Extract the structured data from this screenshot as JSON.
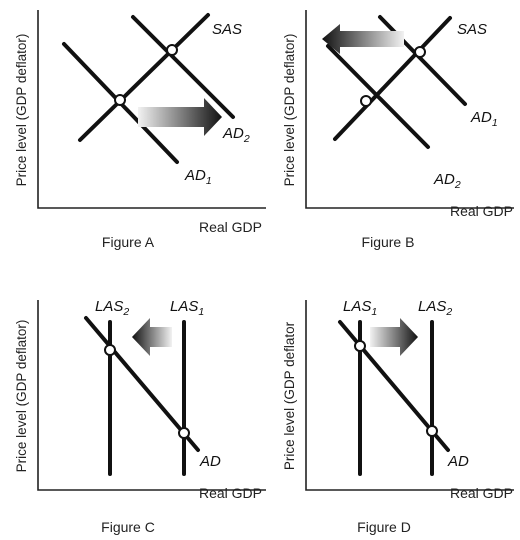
{
  "figures": [
    {
      "caption": "Figure A",
      "y_axis_label": "Price level (GDP deflator)",
      "x_axis_label": "Real GDP",
      "curve_labels": {
        "sas": "SAS",
        "ad1": "AD",
        "ad1_sub": "1",
        "ad2": "AD",
        "ad2_sub": "2"
      },
      "arrow_direction": "right"
    },
    {
      "caption": "Figure B",
      "y_axis_label": "Price level (GDP deflator)",
      "x_axis_label": "Real GDP",
      "curve_labels": {
        "sas": "SAS",
        "ad1": "AD",
        "ad1_sub": "1",
        "ad2": "AD",
        "ad2_sub": "2"
      },
      "arrow_direction": "left"
    },
    {
      "caption": "Figure C",
      "y_axis_label": "Price level (GDP deflator)",
      "x_axis_label": "Real GDP",
      "curve_labels": {
        "las2": "LAS",
        "las2_sub": "2",
        "las1": "LAS",
        "las1_sub": "1",
        "ad": "AD"
      },
      "arrow_direction": "left"
    },
    {
      "caption": "Figure D",
      "y_axis_label": "Price level (GDP deflator",
      "x_axis_label": "Real GDP",
      "curve_labels": {
        "las1": "LAS",
        "las1_sub": "1",
        "las2": "LAS",
        "las2_sub": "2",
        "ad": "AD"
      },
      "arrow_direction": "right"
    }
  ]
}
